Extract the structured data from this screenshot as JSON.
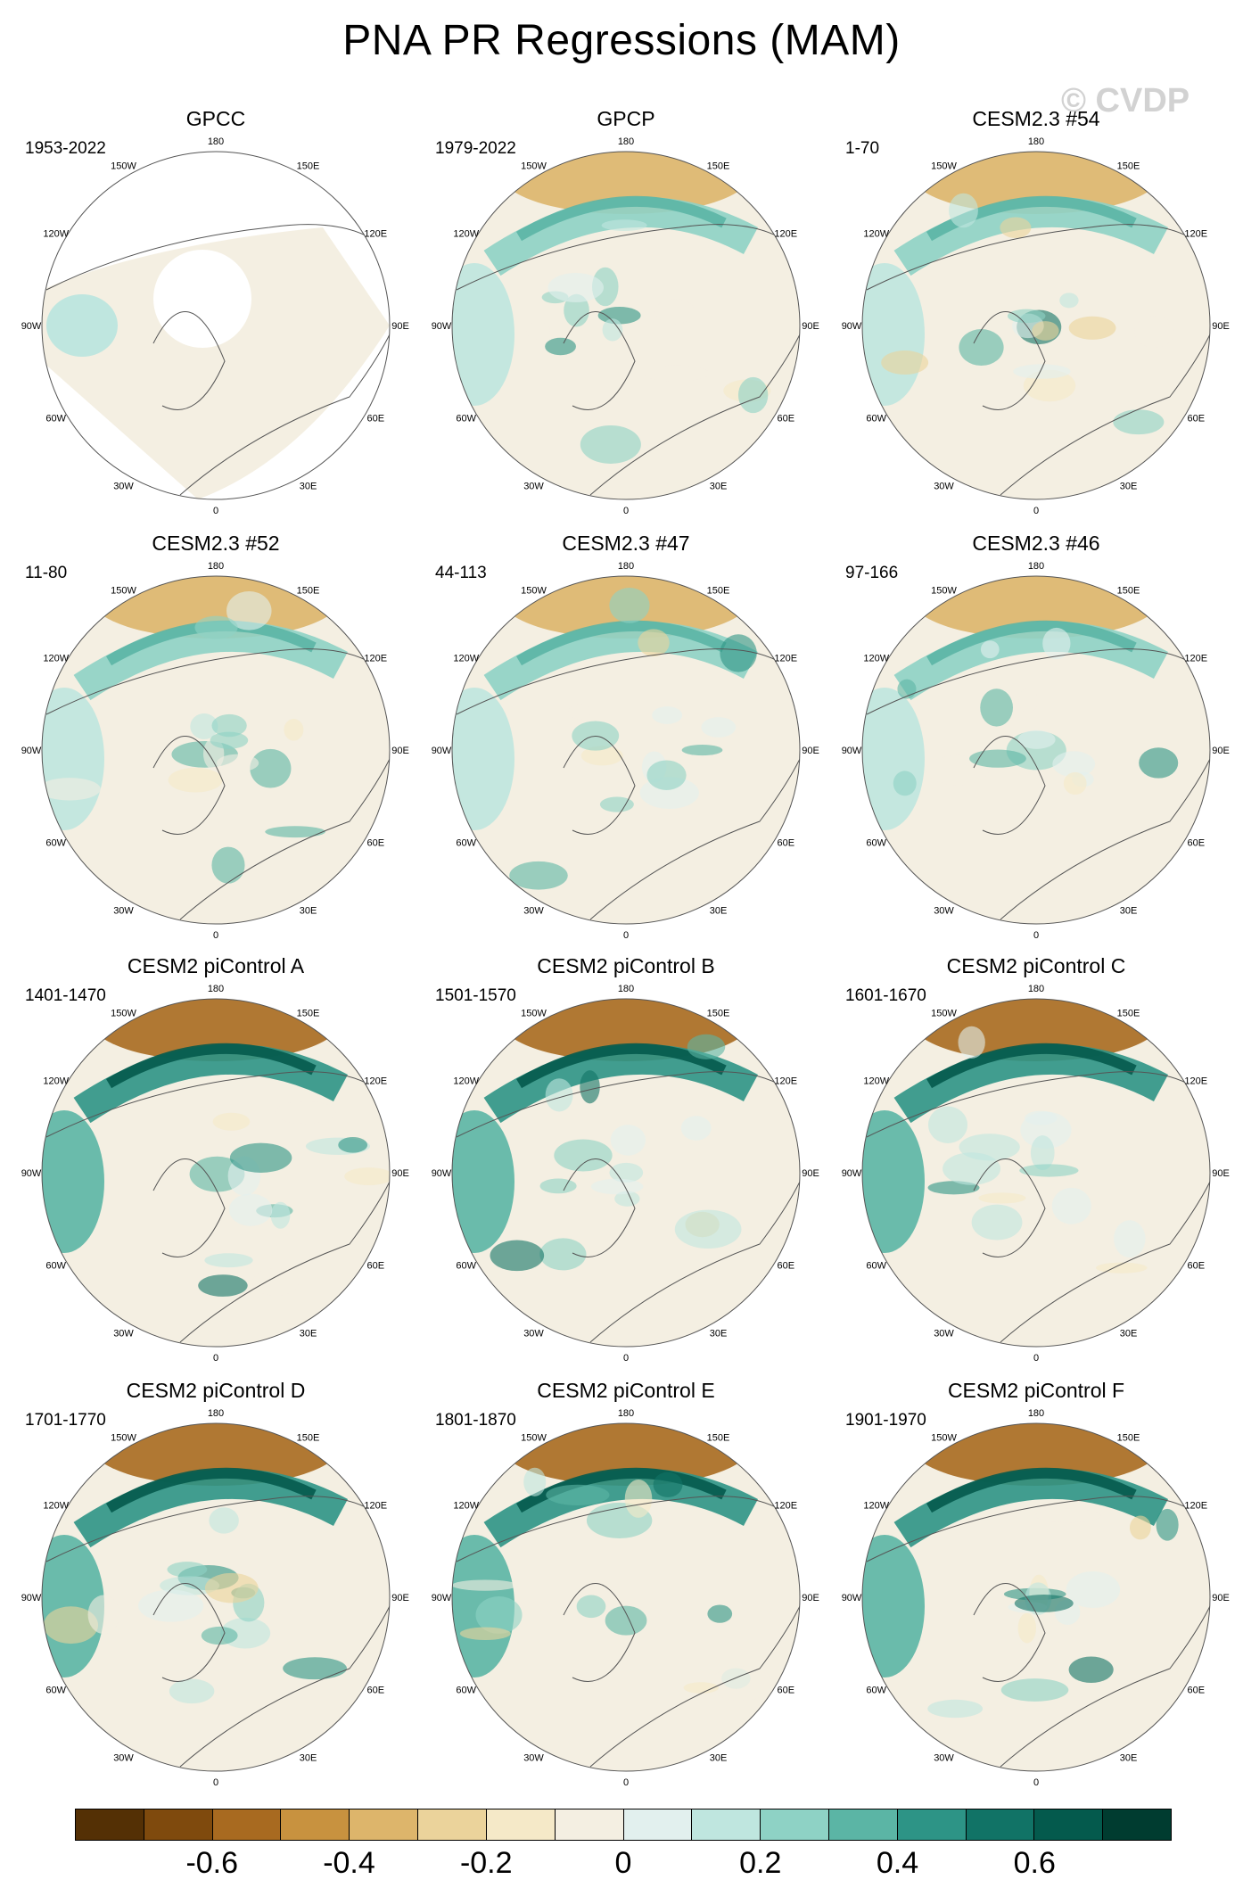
{
  "title": "PNA PR Regressions (MAM)",
  "watermark": "© CVDP",
  "lon_labels": [
    "180",
    "150E",
    "120E",
    "90E",
    "60E",
    "30E",
    "0",
    "30W",
    "60W",
    "90W",
    "120W",
    "150W"
  ],
  "panels": [
    {
      "title": "GPCC",
      "period": "1953-2022"
    },
    {
      "title": "GPCP",
      "period": "1979-2022"
    },
    {
      "title": "CESM2.3 #54",
      "period": "1-70"
    },
    {
      "title": "CESM2.3 #52",
      "period": "11-80"
    },
    {
      "title": "CESM2.3 #47",
      "period": "44-113"
    },
    {
      "title": "CESM2.3 #46",
      "period": "97-166"
    },
    {
      "title": "CESM2 piControl A",
      "period": "1401-1470"
    },
    {
      "title": "CESM2 piControl B",
      "period": "1501-1570"
    },
    {
      "title": "CESM2 piControl C",
      "period": "1601-1670"
    },
    {
      "title": "CESM2 piControl D",
      "period": "1701-1770"
    },
    {
      "title": "CESM2 piControl E",
      "period": "1801-1870"
    },
    {
      "title": "CESM2 piControl F",
      "period": "1901-1970"
    }
  ],
  "colorbar": {
    "colors": [
      "#543005",
      "#7f4a0d",
      "#a86a20",
      "#c8923f",
      "#ddb56b",
      "#ebd39b",
      "#f5e9c8",
      "#f4efe2",
      "#e2f0ee",
      "#bfe6df",
      "#8ed2c5",
      "#5bb5a5",
      "#2d9486",
      "#117366",
      "#045a4d",
      "#003c30"
    ],
    "tick_labels": [
      "-0.6",
      "-0.4",
      "-0.2",
      "0",
      "0.2",
      "0.4",
      "0.6"
    ]
  }
}
